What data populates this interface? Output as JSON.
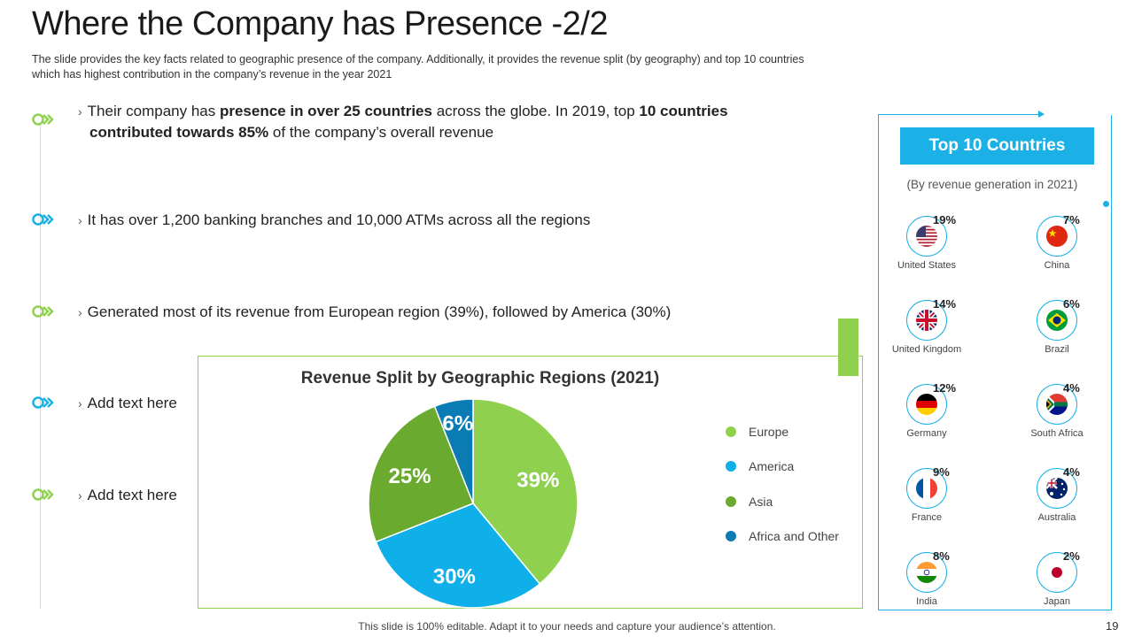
{
  "slide": {
    "title": "Where the Company has Presence -2/2",
    "subtitle": "The slide provides the key facts related to geographic presence of the company. Additionally, it provides the revenue split (by geography) and top 10 countries which has highest contribution in the company’s revenue in the year 2021",
    "footer": "This slide is 100% editable. Adapt it to your needs and capture your audience’s attention.",
    "page_number": "19"
  },
  "bullets": [
    {
      "p1": "Their company has ",
      "b1": "presence in over 25 countries",
      "p2": " across the globe. In 2019, top ",
      "b2": "10 countries",
      "b3": "contributed towards 85%",
      "p3": " of the company’s overall revenue"
    },
    {
      "text": "It has over 1,200 banking branches and 10,000 ATMs across all the regions"
    },
    {
      "text": "Generated most of its revenue from European region (39%), followed by America (30%)"
    },
    {
      "text": "Add text here"
    },
    {
      "text": "Add text here"
    }
  ],
  "bullet_marker": "›",
  "colors": {
    "green": "#8fd14f",
    "blue": "#1bb0e6",
    "dark_green": "#6aaa2e",
    "dark_blue": "#0b7bb3"
  },
  "chart_data": {
    "type": "pie",
    "title": "Revenue Split by Geographic Regions (2021)",
    "categories": [
      "Europe",
      "America",
      "Asia",
      "Africa and Other"
    ],
    "values": [
      39,
      30,
      25,
      6
    ],
    "labels": [
      "39%",
      "30%",
      "25%",
      "6%"
    ],
    "colors": [
      "#8fd14f",
      "#0fb0ea",
      "#6aaa2e",
      "#0b7bb3"
    ],
    "legend": "right"
  },
  "top_countries": {
    "heading": "Top 10 Countries",
    "subheading": "(By revenue generation in 2021)",
    "items": [
      {
        "name": "United States",
        "pct": "19%",
        "flag": "us-flag-icon"
      },
      {
        "name": "China",
        "pct": "7%",
        "flag": "china-flag-icon"
      },
      {
        "name": "United Kingdom",
        "pct": "14%",
        "flag": "uk-flag-icon"
      },
      {
        "name": "Brazil",
        "pct": "6%",
        "flag": "brazil-flag-icon"
      },
      {
        "name": "Germany",
        "pct": "12%",
        "flag": "germany-flag-icon"
      },
      {
        "name": "South Africa",
        "pct": "4%",
        "flag": "south-africa-flag-icon"
      },
      {
        "name": "France",
        "pct": "9%",
        "flag": "france-flag-icon"
      },
      {
        "name": "Australia",
        "pct": "4%",
        "flag": "australia-flag-icon"
      },
      {
        "name": "India",
        "pct": "8%",
        "flag": "india-flag-icon"
      },
      {
        "name": "Japan",
        "pct": "2%",
        "flag": "japan-flag-icon"
      }
    ]
  }
}
